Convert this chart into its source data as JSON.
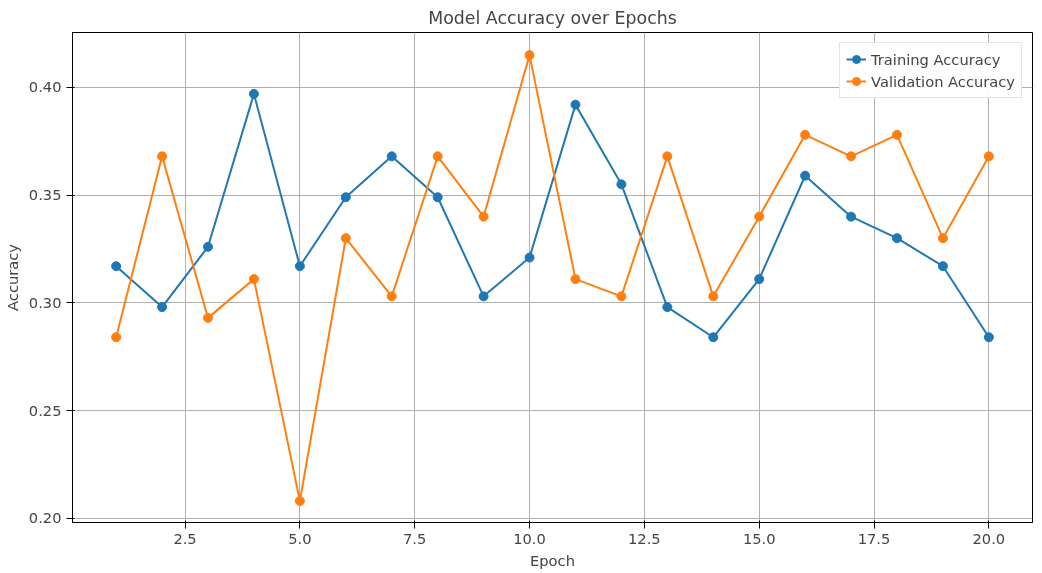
{
  "chart_data": {
    "type": "line",
    "title": "Model Accuracy over Epochs",
    "xlabel": "Epoch",
    "ylabel": "Accuracy",
    "x": [
      1,
      2,
      3,
      4,
      5,
      6,
      7,
      8,
      9,
      10,
      11,
      12,
      13,
      14,
      15,
      16,
      17,
      18,
      19,
      20
    ],
    "series": [
      {
        "name": "Training Accuracy",
        "color": "#1f77b4",
        "values": [
          0.317,
          0.298,
          0.326,
          0.397,
          0.317,
          0.349,
          0.368,
          0.349,
          0.303,
          0.321,
          0.392,
          0.355,
          0.298,
          0.284,
          0.311,
          0.359,
          0.34,
          0.33,
          0.317,
          0.284
        ]
      },
      {
        "name": "Validation Accuracy",
        "color": "#ff7f0e",
        "values": [
          0.284,
          0.368,
          0.293,
          0.311,
          0.208,
          0.33,
          0.303,
          0.368,
          0.34,
          0.415,
          0.311,
          0.303,
          0.368,
          0.303,
          0.34,
          0.378,
          0.368,
          0.378,
          0.33,
          0.368
        ]
      }
    ],
    "xlim": [
      0.05,
      20.95
    ],
    "ylim": [
      0.198,
      0.4255
    ],
    "xticks": [
      {
        "value": 2.5,
        "label": "2.5"
      },
      {
        "value": 5,
        "label": "5.0"
      },
      {
        "value": 7.5,
        "label": "7.5"
      },
      {
        "value": 10,
        "label": "10.0"
      },
      {
        "value": 12.5,
        "label": "12.5"
      },
      {
        "value": 15,
        "label": "15.0"
      },
      {
        "value": 17.5,
        "label": "17.5"
      },
      {
        "value": 20,
        "label": "20.0"
      }
    ],
    "yticks": [
      {
        "value": 0.2,
        "label": "0.20"
      },
      {
        "value": 0.25,
        "label": "0.25"
      },
      {
        "value": 0.3,
        "label": "0.30"
      },
      {
        "value": 0.35,
        "label": "0.35"
      },
      {
        "value": 0.4,
        "label": "0.40"
      }
    ],
    "grid": true,
    "legend": "top right",
    "marker": "circle",
    "line_style": "solid"
  }
}
